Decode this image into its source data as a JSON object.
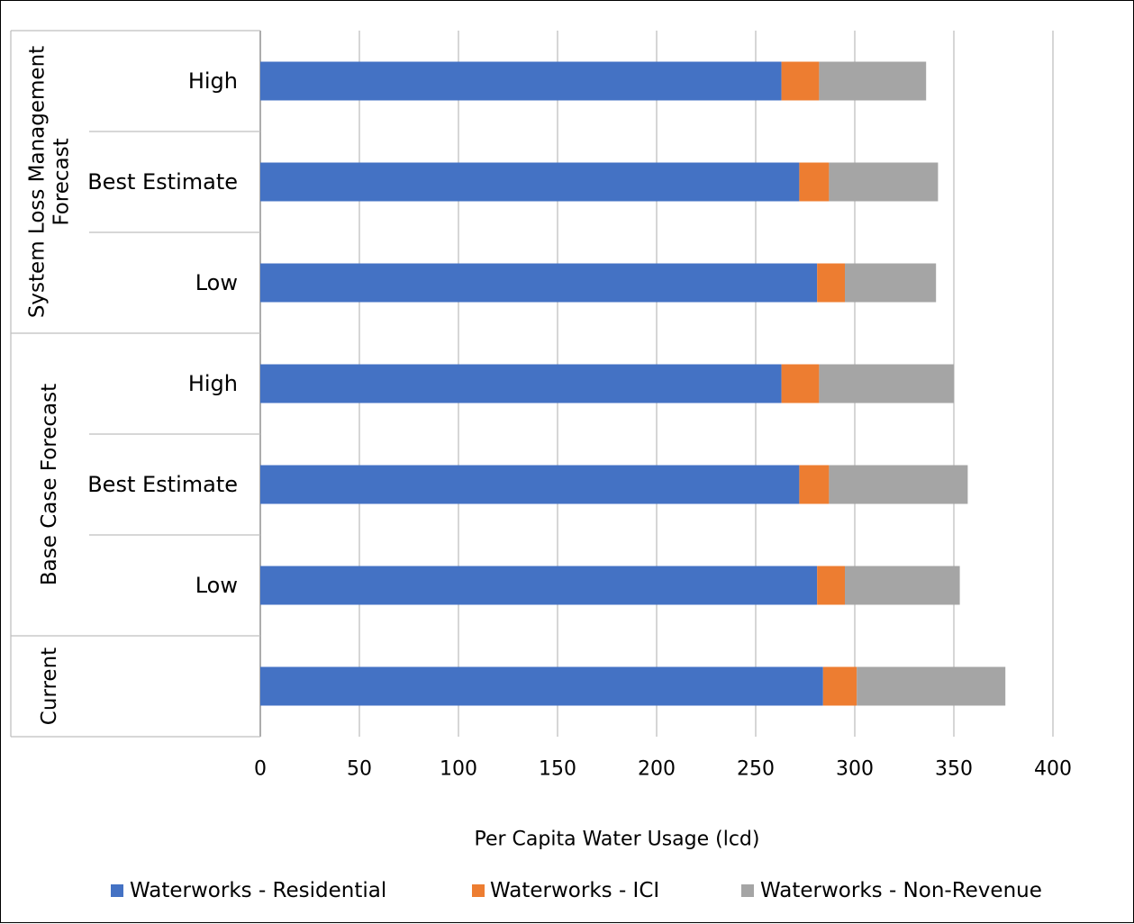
{
  "chart_data": {
    "type": "bar",
    "orientation": "horizontal",
    "stacked": true,
    "xlabel": "Per Capita Water Usage (lcd)",
    "xlim": [
      0,
      400
    ],
    "xticks": [
      0,
      50,
      100,
      150,
      200,
      250,
      300,
      350,
      400
    ],
    "grid": "vertical",
    "legend_position": "bottom",
    "groups": [
      {
        "label": "System Loss Management Forecast",
        "label_lines": [
          "System Loss Management",
          "Forecast"
        ],
        "categories": [
          "High",
          "Best Estimate",
          "Low"
        ]
      },
      {
        "label": "Base Case Forecast",
        "label_lines": [
          "Base Case Forecast"
        ],
        "categories": [
          "High",
          "Best Estimate",
          "Low"
        ]
      },
      {
        "label": "Current",
        "label_lines": [
          "Current"
        ],
        "categories": [
          ""
        ]
      }
    ],
    "series": [
      {
        "name": "Waterworks - Residential",
        "color": "#4472C4",
        "values": [
          263,
          272,
          281,
          263,
          272,
          281,
          284
        ]
      },
      {
        "name": "Waterworks - ICI",
        "color": "#ED7D31",
        "values": [
          19,
          15,
          14,
          19,
          15,
          14,
          17
        ]
      },
      {
        "name": "Waterworks - Non-Revenue",
        "color": "#A5A5A5",
        "values": [
          54,
          55,
          46,
          68,
          70,
          58,
          75
        ]
      }
    ]
  }
}
